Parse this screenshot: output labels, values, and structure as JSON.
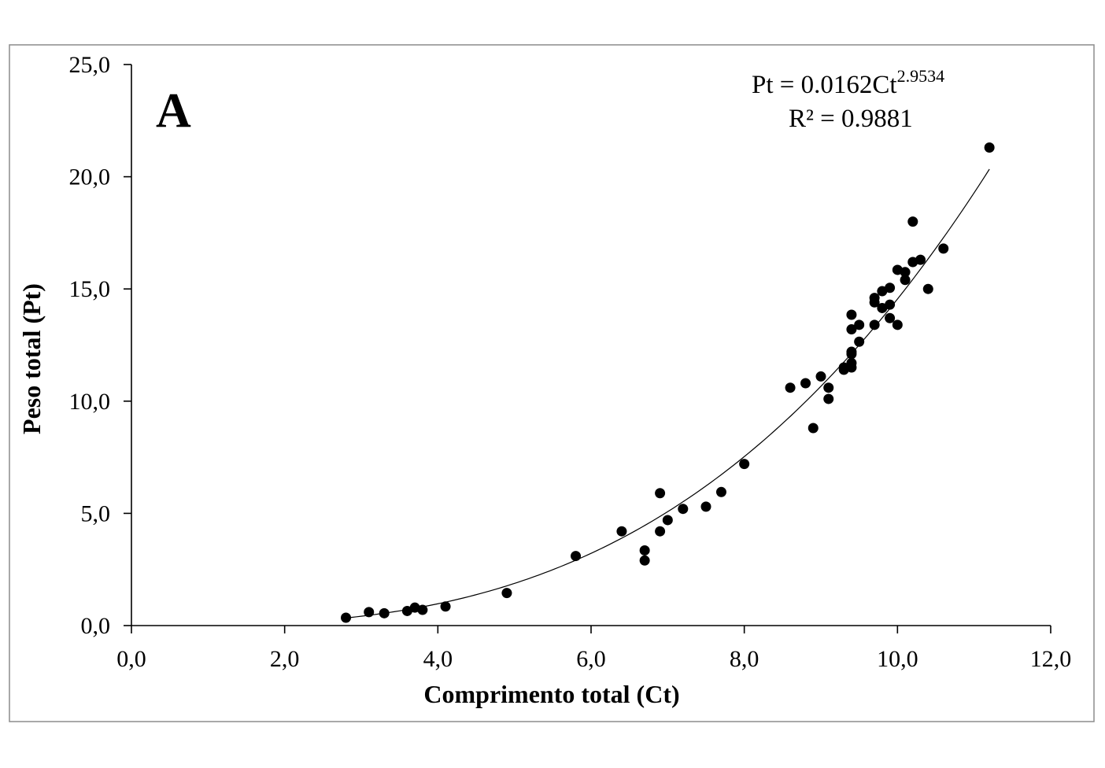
{
  "chart_data": {
    "type": "scatter",
    "panel_label": "A",
    "xlabel": "Comprimento total (Ct)",
    "ylabel": "Peso total (Pt)",
    "xlim": [
      0,
      12
    ],
    "ylim": [
      0,
      25
    ],
    "x_ticks": [
      0,
      2,
      4,
      6,
      8,
      10,
      12
    ],
    "y_ticks": [
      0,
      5,
      10,
      15,
      20,
      25
    ],
    "x_tick_labels": [
      "0,0",
      "2,0",
      "4,0",
      "6,0",
      "8,0",
      "10,0",
      "12,0"
    ],
    "y_tick_labels": [
      "0,0",
      "5,0",
      "10,0",
      "15,0",
      "20,0",
      "25,0"
    ],
    "equation": {
      "prefix": "Pt = 0.0162Ct",
      "exponent": "2.9534",
      "r_squared": "R² = 0.9881"
    },
    "fit": {
      "model": "power",
      "a": 0.0162,
      "b": 2.9534,
      "x_range": [
        2.8,
        11.2
      ]
    },
    "grid": false,
    "points": [
      [
        2.8,
        0.35
      ],
      [
        3.1,
        0.6
      ],
      [
        3.3,
        0.55
      ],
      [
        3.6,
        0.65
      ],
      [
        3.7,
        0.8
      ],
      [
        3.8,
        0.7
      ],
      [
        4.1,
        0.85
      ],
      [
        4.9,
        1.45
      ],
      [
        5.8,
        3.1
      ],
      [
        6.4,
        4.2
      ],
      [
        6.7,
        3.35
      ],
      [
        6.7,
        2.9
      ],
      [
        6.9,
        5.9
      ],
      [
        6.9,
        4.2
      ],
      [
        7.0,
        4.7
      ],
      [
        7.2,
        5.2
      ],
      [
        7.5,
        5.3
      ],
      [
        7.7,
        5.95
      ],
      [
        8.0,
        7.2
      ],
      [
        8.6,
        10.6
      ],
      [
        8.8,
        10.8
      ],
      [
        8.9,
        8.8
      ],
      [
        9.0,
        11.1
      ],
      [
        9.1,
        10.6
      ],
      [
        9.1,
        10.1
      ],
      [
        9.3,
        11.5
      ],
      [
        9.3,
        11.4
      ],
      [
        9.4,
        11.7
      ],
      [
        9.4,
        11.5
      ],
      [
        9.4,
        12.1
      ],
      [
        9.4,
        12.2
      ],
      [
        9.4,
        13.2
      ],
      [
        9.4,
        13.85
      ],
      [
        9.5,
        13.4
      ],
      [
        9.5,
        12.65
      ],
      [
        9.7,
        13.4
      ],
      [
        9.7,
        14.4
      ],
      [
        9.7,
        14.6
      ],
      [
        9.8,
        14.9
      ],
      [
        9.8,
        14.15
      ],
      [
        9.9,
        14.3
      ],
      [
        9.9,
        15.05
      ],
      [
        9.9,
        13.7
      ],
      [
        10.0,
        13.4
      ],
      [
        10.0,
        15.85
      ],
      [
        10.1,
        15.75
      ],
      [
        10.1,
        15.4
      ],
      [
        10.2,
        16.2
      ],
      [
        10.2,
        18.0
      ],
      [
        10.3,
        16.3
      ],
      [
        10.4,
        15.0
      ],
      [
        10.6,
        16.8
      ],
      [
        11.2,
        21.3
      ]
    ]
  }
}
